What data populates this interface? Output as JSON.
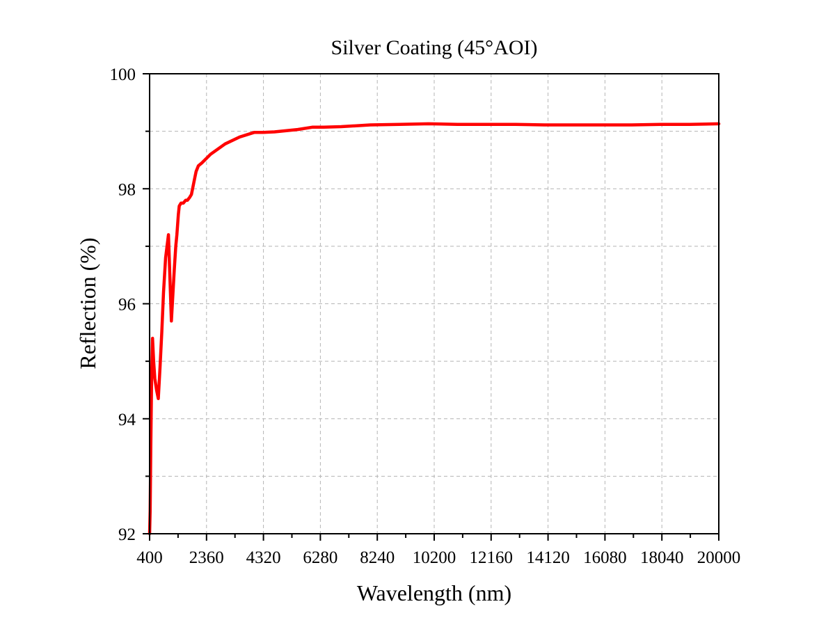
{
  "chart_data": {
    "type": "line",
    "title": "Silver Coating (45°AOI)",
    "xlabel": "Wavelength (nm)",
    "ylabel": "Reflection (%)",
    "xlim": [
      400,
      20000
    ],
    "ylim": [
      92,
      100
    ],
    "x_ticks": [
      400,
      2360,
      4320,
      6280,
      8240,
      10200,
      12160,
      14120,
      16080,
      18040,
      20000
    ],
    "y_ticks": [
      92,
      94,
      96,
      98,
      100
    ],
    "grid": true,
    "line_color": "#ff0000",
    "series": [
      {
        "x": [
          400,
          420,
          440,
          470,
          500,
          540,
          580,
          640,
          700,
          760,
          820,
          880,
          950,
          1050,
          1150,
          1250,
          1300,
          1340,
          1360,
          1375,
          1390,
          1420,
          1480,
          1560,
          1640,
          1700,
          1780,
          1840,
          1900,
          1960,
          2000,
          2080,
          2200,
          2500,
          3000,
          3500,
          4000,
          4300,
          4700,
          5500,
          6000,
          6400,
          7000,
          8000,
          9000,
          10000,
          11000,
          12000,
          13000,
          14000,
          15000,
          16000,
          17000,
          18000,
          19000,
          20000
        ],
        "y": [
          92.0,
          92.4,
          93.5,
          94.7,
          95.4,
          95.0,
          94.7,
          94.5,
          94.35,
          94.9,
          95.5,
          96.2,
          96.8,
          97.2,
          95.7,
          96.6,
          97.0,
          97.2,
          97.35,
          97.45,
          97.55,
          97.7,
          97.75,
          97.75,
          97.8,
          97.8,
          97.85,
          97.9,
          98.05,
          98.2,
          98.3,
          98.4,
          98.45,
          98.6,
          98.78,
          98.9,
          98.98,
          98.98,
          98.99,
          99.03,
          99.07,
          99.07,
          99.08,
          99.11,
          99.12,
          99.13,
          99.12,
          99.12,
          99.12,
          99.11,
          99.11,
          99.11,
          99.11,
          99.12,
          99.12,
          99.13
        ]
      }
    ]
  }
}
